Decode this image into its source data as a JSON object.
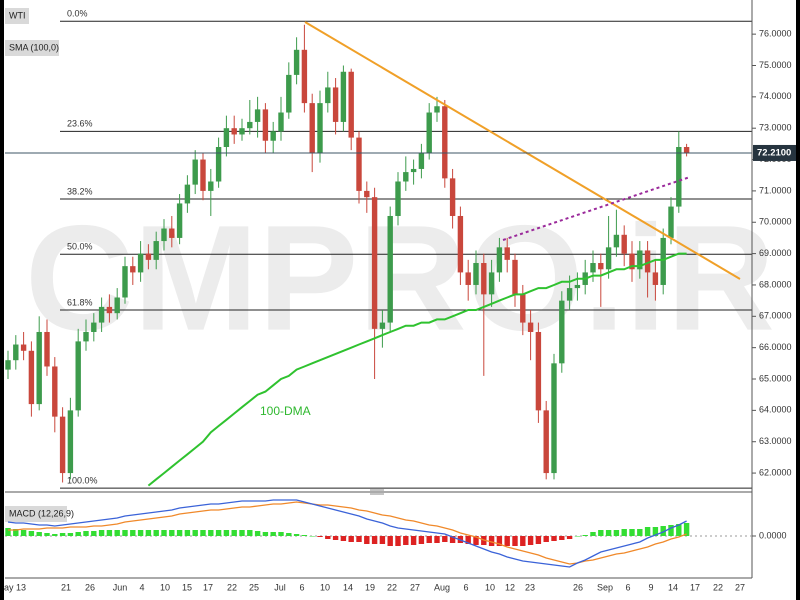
{
  "chart_data": {
    "type": "candlestick",
    "title": "WTI",
    "indicator_label": "SMA (100,0)",
    "watermark": "CMPRO.iR",
    "annotation": "100-DMA",
    "x_tick_labels": [
      "ay 13",
      "21",
      "26",
      "Jun",
      "4",
      "10",
      "15",
      "17",
      "22",
      "25",
      "Jul",
      "6",
      "10",
      "14",
      "19",
      "22",
      "27",
      "Aug",
      "6",
      "10",
      "12",
      "23",
      "26",
      "Sep",
      "6",
      "9",
      "14",
      "17",
      "22",
      "27"
    ],
    "open": [
      65.3,
      65.6,
      66.1,
      65.9,
      64.2,
      66.5,
      65.4,
      63.8,
      62.0,
      64.0,
      66.2,
      66.5,
      66.8,
      67.3,
      67.1,
      67.6,
      68.6,
      68.4,
      69.0,
      68.8,
      69.4,
      69.8,
      69.5,
      70.6,
      71.2,
      72.0,
      71.0,
      71.3,
      72.4,
      73.0,
      72.8,
      73.0,
      73.2,
      73.6,
      72.6,
      72.9,
      73.5,
      74.7,
      75.5,
      73.8,
      72.2,
      73.8,
      74.3,
      73.2,
      74.8,
      72.7,
      71.0,
      70.8,
      66.6,
      66.8,
      70.2,
      71.3,
      71.6,
      71.7,
      72.2,
      73.5,
      73.7,
      71.4,
      70.2,
      68.4,
      68.0,
      68.7,
      67.7,
      68.4,
      69.2,
      68.8,
      67.7,
      66.8,
      66.5,
      64.0,
      62.0,
      65.5,
      67.5,
      67.9,
      68.0,
      68.4,
      68.7,
      68.5,
      69.2,
      69.6,
      69.0,
      68.5,
      69.1,
      68.4,
      68.0,
      69.5,
      70.5,
      72.4
    ],
    "high": [
      65.9,
      66.4,
      66.5,
      66.2,
      67.0,
      66.9,
      65.7,
      64.1,
      64.4,
      66.6,
      66.9,
      67.1,
      67.6,
      67.7,
      67.9,
      68.9,
      68.9,
      69.4,
      69.3,
      69.7,
      70.1,
      70.2,
      70.9,
      71.5,
      72.3,
      72.2,
      71.7,
      72.7,
      73.4,
      73.4,
      73.3,
      73.9,
      74.0,
      73.8,
      73.2,
      74.0,
      75.1,
      75.9,
      76.3,
      74.1,
      74.2,
      74.8,
      74.6,
      75.0,
      74.9,
      72.9,
      71.3,
      71.1,
      67.2,
      70.5,
      71.6,
      72.1,
      72.0,
      72.5,
      73.8,
      74.0,
      73.9,
      71.7,
      70.5,
      68.8,
      69.1,
      69.0,
      68.8,
      69.5,
      69.5,
      69.0,
      68.0,
      67.2,
      66.8,
      64.3,
      65.8,
      67.8,
      68.3,
      68.4,
      68.8,
      69.1,
      69.0,
      70.2,
      70.4,
      69.9,
      69.4,
      69.4,
      69.4,
      68.8,
      69.8,
      70.8,
      72.9,
      72.5
    ],
    "low": [
      65.0,
      65.3,
      65.6,
      63.8,
      64.0,
      65.1,
      63.3,
      61.7,
      61.8,
      63.8,
      65.9,
      66.2,
      66.5,
      66.8,
      66.9,
      67.4,
      68.0,
      68.1,
      68.5,
      68.5,
      69.1,
      69.2,
      69.3,
      70.3,
      70.9,
      70.7,
      70.2,
      71.1,
      72.1,
      72.5,
      72.6,
      72.8,
      72.7,
      72.2,
      72.2,
      72.6,
      73.3,
      74.4,
      73.5,
      71.6,
      71.9,
      73.5,
      72.8,
      72.9,
      72.3,
      70.6,
      70.3,
      65.0,
      66.0,
      66.5,
      69.9,
      71.0,
      71.2,
      71.4,
      72.0,
      73.2,
      71.1,
      69.8,
      68.0,
      67.5,
      67.7,
      65.1,
      67.3,
      68.1,
      68.4,
      67.3,
      66.4,
      65.6,
      63.6,
      61.8,
      61.8,
      65.2,
      67.2,
      67.5,
      67.7,
      68.1,
      67.3,
      68.2,
      68.9,
      68.6,
      68.1,
      68.2,
      67.6,
      67.5,
      67.7,
      69.3,
      70.3,
      72.1
    ],
    "close": [
      65.6,
      66.1,
      65.9,
      64.2,
      66.5,
      65.4,
      63.8,
      62.0,
      64.0,
      66.2,
      66.5,
      66.8,
      67.3,
      67.1,
      67.6,
      68.6,
      68.4,
      69.0,
      68.8,
      69.4,
      69.8,
      69.5,
      70.6,
      71.2,
      72.0,
      71.0,
      71.3,
      72.4,
      73.0,
      72.8,
      73.0,
      73.2,
      73.6,
      72.6,
      72.9,
      73.5,
      74.7,
      75.5,
      73.8,
      72.2,
      73.8,
      74.3,
      73.2,
      74.8,
      72.7,
      71.0,
      70.8,
      66.6,
      66.8,
      70.2,
      71.3,
      71.6,
      71.7,
      72.2,
      73.5,
      73.7,
      71.4,
      70.2,
      68.4,
      68.0,
      68.7,
      67.7,
      68.4,
      69.2,
      68.8,
      67.7,
      66.8,
      66.5,
      64.0,
      62.0,
      65.5,
      67.5,
      67.9,
      68.0,
      68.4,
      68.7,
      68.5,
      69.2,
      69.6,
      69.0,
      68.5,
      69.1,
      68.4,
      68.0,
      69.5,
      70.5,
      72.4,
      72.21
    ],
    "up_color": "#3d9b4c",
    "down_color": "#c9473c",
    "sma": [
      null,
      null,
      null,
      null,
      null,
      null,
      null,
      null,
      null,
      null,
      null,
      null,
      null,
      null,
      null,
      null,
      null,
      null,
      61.6,
      61.8,
      62.0,
      62.2,
      62.4,
      62.6,
      62.8,
      63.0,
      63.3,
      63.5,
      63.7,
      63.9,
      64.1,
      64.3,
      64.5,
      64.6,
      64.8,
      65.0,
      65.1,
      65.3,
      65.4,
      65.5,
      65.6,
      65.7,
      65.8,
      65.9,
      66.0,
      66.1,
      66.2,
      66.3,
      66.4,
      66.5,
      66.6,
      66.7,
      66.7,
      66.8,
      66.8,
      66.9,
      66.9,
      67.0,
      67.1,
      67.2,
      67.2,
      67.3,
      67.4,
      67.5,
      67.6,
      67.7,
      67.7,
      67.8,
      67.9,
      67.9,
      68.0,
      68.1,
      68.1,
      68.2,
      68.2,
      68.3,
      68.3,
      68.4,
      68.5,
      68.5,
      68.6,
      68.6,
      68.7,
      68.8,
      68.8,
      68.9,
      69.0,
      69.0
    ],
    "sma_color": "#2fc22f",
    "ylim": [
      61.46,
      76.77
    ],
    "yticks": [
      {
        "value": 62,
        "label": "62.0000"
      },
      {
        "value": 63,
        "label": "63.0000"
      },
      {
        "value": 64,
        "label": "64.0000"
      },
      {
        "value": 65,
        "label": "65.0000"
      },
      {
        "value": 66,
        "label": "66.0000"
      },
      {
        "value": 67,
        "label": "67.0000"
      },
      {
        "value": 68,
        "label": "68.0000"
      },
      {
        "value": 69,
        "label": "69.0000"
      },
      {
        "value": 70,
        "label": "70.0000"
      },
      {
        "value": 71,
        "label": "71.0000"
      },
      {
        "value": 72,
        "label": "72.0000"
      },
      {
        "value": 73,
        "label": "73.0000"
      },
      {
        "value": 74,
        "label": "74.0000"
      },
      {
        "value": 75,
        "label": "75.0000"
      },
      {
        "value": 76,
        "label": "76.0000"
      }
    ],
    "fib_levels": [
      {
        "label": "0.0%",
        "value": 76.41
      },
      {
        "label": "23.6%",
        "value": 72.9
      },
      {
        "label": "38.2%",
        "value": 70.74
      },
      {
        "label": "50.0%",
        "value": 68.98
      },
      {
        "label": "61.8%",
        "value": 67.2
      },
      {
        "label": "100.0%",
        "value": 61.52
      }
    ],
    "last_price": 72.21,
    "last_price_label": "72.2100",
    "macd": {
      "title": "MACD (12,26,9)",
      "ylim": [
        -3.9,
        3.9
      ],
      "yticks": [
        {
          "value": 0,
          "label": "0.0000"
        }
      ],
      "macd_color": "#3b63d8",
      "signal_color": "#f0892a",
      "up_color": "#33dd33",
      "down_color": "#dd2222",
      "macd": [
        1.4,
        1.3,
        1.3,
        1.2,
        1.1,
        1.1,
        1.0,
        1.1,
        1.2,
        1.3,
        1.4,
        1.5,
        1.6,
        1.7,
        1.8,
        2.0,
        2.1,
        2.2,
        2.3,
        2.4,
        2.5,
        2.6,
        2.8,
        2.9,
        3.0,
        3.1,
        3.2,
        3.2,
        3.3,
        3.4,
        3.5,
        3.5,
        3.5,
        3.5,
        3.6,
        3.6,
        3.6,
        3.6,
        3.4,
        3.2,
        3.0,
        2.8,
        2.6,
        2.4,
        2.2,
        2.0,
        1.7,
        1.5,
        1.3,
        1.0,
        0.8,
        0.7,
        0.6,
        0.5,
        0.4,
        0.3,
        0.2,
        -0.1,
        -0.4,
        -0.7,
        -1.0,
        -1.3,
        -1.6,
        -1.8,
        -2.1,
        -2.3,
        -2.5,
        -2.6,
        -2.7,
        -2.8,
        -2.9,
        -3.0,
        -3.1,
        -2.7,
        -2.4,
        -2.0,
        -1.6,
        -1.4,
        -1.2,
        -1.0,
        -0.8,
        -0.6,
        -0.2,
        0.1,
        0.4,
        0.8,
        1.1,
        1.5
      ],
      "signal": [
        0.6,
        0.6,
        0.7,
        0.7,
        0.7,
        0.8,
        0.8,
        0.8,
        0.9,
        0.9,
        0.9,
        1.0,
        1.0,
        1.1,
        1.2,
        1.4,
        1.5,
        1.6,
        1.7,
        1.8,
        1.9,
        2.0,
        2.2,
        2.3,
        2.4,
        2.5,
        2.6,
        2.6,
        2.7,
        2.8,
        2.9,
        2.9,
        3.0,
        3.1,
        3.2,
        3.2,
        3.3,
        3.4,
        3.3,
        3.2,
        3.1,
        3.1,
        3.0,
        2.9,
        2.8,
        2.6,
        2.5,
        2.3,
        2.1,
        2.0,
        1.8,
        1.6,
        1.5,
        1.3,
        1.1,
        1.0,
        0.8,
        0.6,
        0.3,
        0.1,
        -0.1,
        -0.4,
        -0.6,
        -0.8,
        -1.1,
        -1.3,
        -1.5,
        -1.7,
        -1.9,
        -2.2,
        -2.4,
        -2.6,
        -2.8,
        -2.7,
        -2.5,
        -2.4,
        -2.2,
        -2.0,
        -1.8,
        -1.7,
        -1.5,
        -1.3,
        -1.1,
        -0.8,
        -0.6,
        -0.3,
        -0.1,
        0.2
      ],
      "histogram": [
        0.8,
        0.7,
        0.6,
        0.5,
        0.4,
        0.3,
        0.2,
        0.3,
        0.3,
        0.4,
        0.5,
        0.5,
        0.6,
        0.6,
        0.6,
        0.6,
        0.6,
        0.6,
        0.6,
        0.6,
        0.6,
        0.6,
        0.6,
        0.6,
        0.6,
        0.6,
        0.6,
        0.6,
        0.6,
        0.6,
        0.6,
        0.6,
        0.5,
        0.4,
        0.4,
        0.4,
        0.3,
        0.2,
        0.1,
        0.0,
        -0.1,
        -0.3,
        -0.4,
        -0.5,
        -0.6,
        -0.6,
        -0.8,
        -0.8,
        -0.8,
        -1.0,
        -1.0,
        -0.9,
        -0.9,
        -0.8,
        -0.7,
        -0.7,
        -0.6,
        -0.7,
        -0.7,
        -0.8,
        -0.9,
        -0.9,
        -1.0,
        -1.0,
        -1.0,
        -1.0,
        -1.0,
        -0.9,
        -0.8,
        -0.6,
        -0.5,
        -0.4,
        -0.3,
        0.0,
        0.1,
        0.4,
        0.6,
        0.6,
        0.6,
        0.7,
        0.7,
        0.7,
        0.9,
        0.9,
        1.0,
        1.1,
        1.2,
        1.3
      ]
    }
  }
}
